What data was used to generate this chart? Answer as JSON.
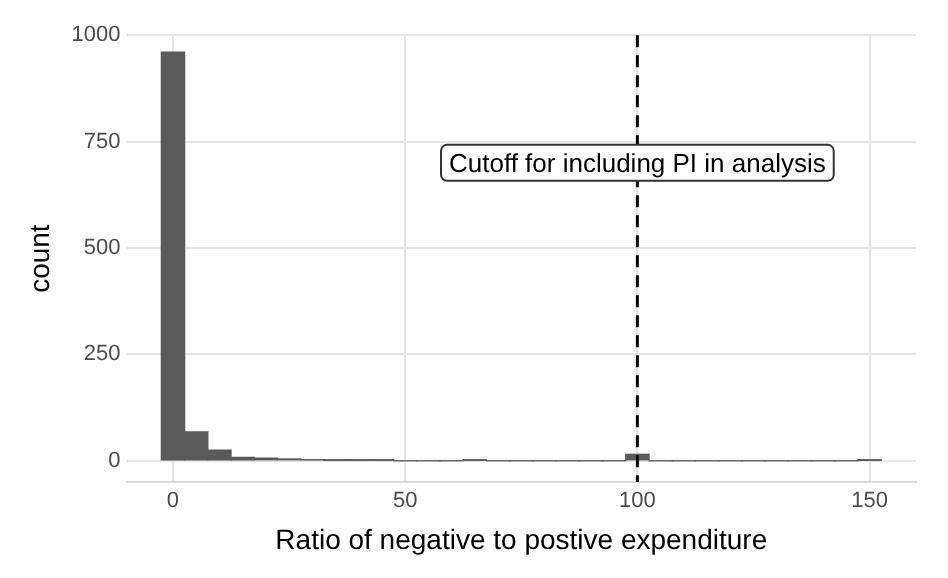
{
  "chart_data": {
    "type": "histogram",
    "xlabel": "Ratio of negative to postive expenditure",
    "ylabel": "count",
    "bins": [
      -2.5,
      2.5,
      7.5,
      12.5,
      17.5,
      22.5,
      27.5,
      32.5,
      37.5,
      42.5,
      47.5,
      52.5,
      57.5,
      62.5,
      67.5,
      72.5,
      77.5,
      82.5,
      87.5,
      92.5,
      97.5,
      102.5,
      107.5,
      112.5,
      117.5,
      122.5,
      127.5,
      132.5,
      137.5,
      142.5,
      147.5,
      152.5
    ],
    "values": [
      960,
      68,
      25,
      8,
      6,
      4,
      2,
      1,
      1,
      1,
      0,
      0,
      0,
      1,
      0,
      0,
      0,
      0,
      0,
      0,
      15,
      0,
      0,
      0,
      0,
      0,
      0,
      0,
      0,
      0,
      1
    ],
    "color": "#595959",
    "xlim": [
      -10,
      160
    ],
    "xticks": [
      0,
      50,
      100,
      150
    ],
    "ylim": [
      -50,
      1000
    ],
    "yticks": [
      0,
      250,
      500,
      750,
      1000
    ],
    "grid": true,
    "ref_lines": [
      {
        "axis": "x",
        "value": 100,
        "color": "#000000",
        "line_style": "dashed"
      }
    ],
    "annotations": [
      {
        "text": "Cutoff for including PI in analysis",
        "x": 100,
        "y": 700
      }
    ]
  }
}
